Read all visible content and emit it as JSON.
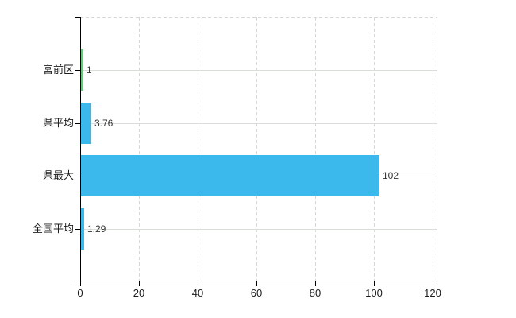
{
  "chart_data": {
    "type": "bar",
    "orientation": "horizontal",
    "title": "",
    "xlabel": "",
    "ylabel": "",
    "categories": [
      "宮前区",
      "県平均",
      "県最大",
      "全国平均"
    ],
    "values": [
      1,
      3.76,
      102,
      1.29
    ],
    "value_labels": [
      "1",
      "3.76",
      "102",
      "1.29"
    ],
    "bar_colors": [
      "#66c87c",
      "#3cb9ec",
      "#3cb9ec",
      "#3cb9ec"
    ],
    "x_ticks": [
      0,
      20,
      40,
      60,
      80,
      100,
      120
    ],
    "x_tick_labels": [
      "0",
      "20",
      "40",
      "60",
      "80",
      "100",
      "120"
    ],
    "xlim": [
      0,
      121.6
    ],
    "grid": true,
    "legend": false,
    "colors": {
      "background": "#ffffff",
      "axis": "#000000",
      "gridline": "#d9d9d9",
      "bar_blue": "#3cb9ec",
      "bar_green": "#66c87c",
      "label_text": "#1c1c1c",
      "value_text": "#333333"
    }
  }
}
